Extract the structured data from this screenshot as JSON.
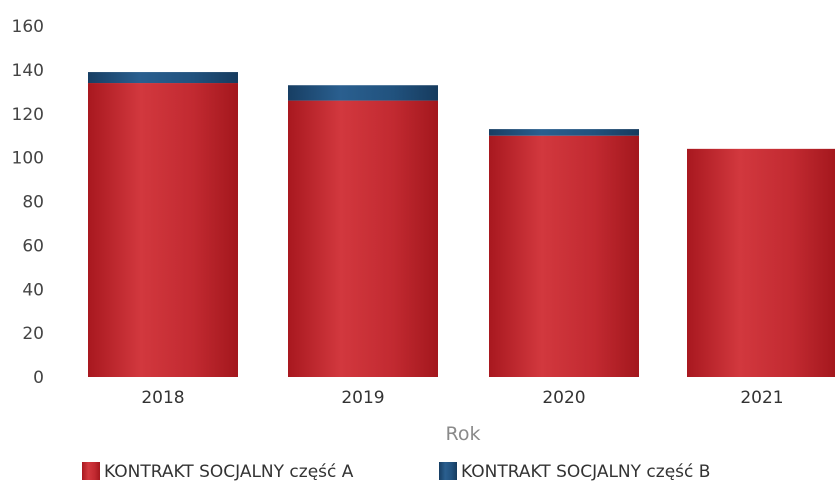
{
  "chart_data": {
    "type": "bar",
    "stacked": true,
    "categories": [
      "2018",
      "2019",
      "2020",
      "2021"
    ],
    "series": [
      {
        "name": "KONTRAKT SOCJALNY część A",
        "values": [
          134,
          126,
          110,
          104
        ],
        "color": "#c0282e"
      },
      {
        "name": "KONTRAKT SOCJALNY część B",
        "values": [
          5,
          7,
          3,
          0
        ],
        "color": "#1f4e7a"
      }
    ],
    "title": "",
    "xlabel": "Rok",
    "ylabel": "",
    "ylim": [
      0,
      160
    ],
    "yticks": [
      "0",
      "20",
      "40",
      "60",
      "80",
      "100",
      "120",
      "140",
      "160"
    ],
    "grid": false,
    "legend_position": "bottom"
  }
}
